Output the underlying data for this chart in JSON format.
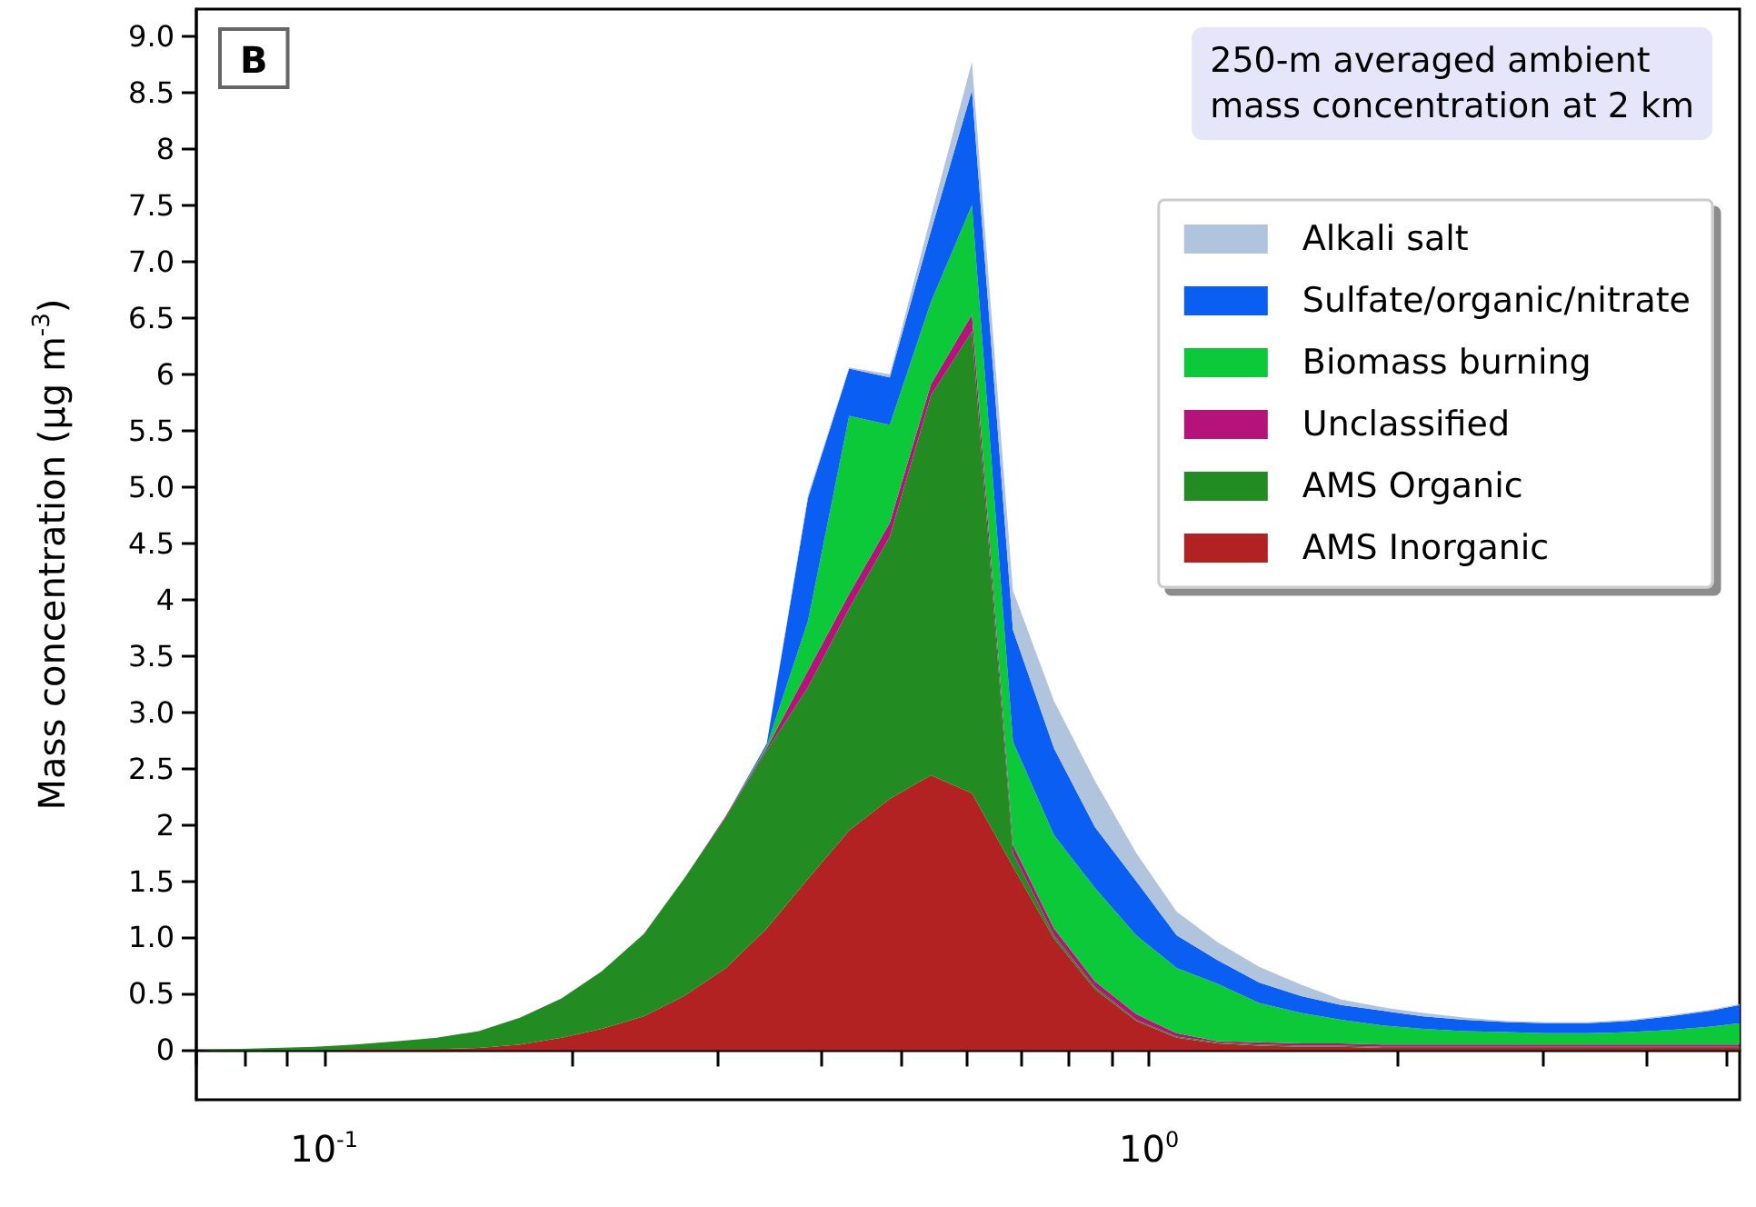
{
  "chart_data": {
    "type": "area",
    "stacked": true,
    "xlabel": null,
    "ylabel": "Mass concentration (µg m$^{-3}$)",
    "annotations": [
      "B",
      "250-m averaged ambient\nmass concentration at 2 km"
    ],
    "log": "x",
    "legend": "top right",
    "x": [
      0.07,
      0.0775,
      0.0869,
      0.0974,
      0.109,
      0.123,
      0.137,
      0.154,
      0.173,
      0.194,
      0.217,
      0.244,
      0.273,
      0.307,
      0.344,
      0.386,
      0.433,
      0.485,
      0.544,
      0.61,
      0.684,
      0.767,
      0.86,
      0.965,
      1.08,
      1.21,
      1.36,
      1.53,
      1.71,
      1.92,
      2.15,
      2.41,
      2.71,
      3.03,
      3.4,
      3.82,
      4.28,
      4.8,
      5.2
    ],
    "xlim": [
      0.07,
      5.2
    ],
    "xticks": [
      {
        "value": 0.07,
        "label": null
      },
      {
        "value": 0.08,
        "label": null
      },
      {
        "value": 0.09,
        "label": null
      },
      {
        "value": 0.1,
        "label": "10$^{-1}$"
      },
      {
        "value": 0.2,
        "label": null
      },
      {
        "value": 0.3,
        "label": null
      },
      {
        "value": 0.4,
        "label": null
      },
      {
        "value": 0.5,
        "label": null
      },
      {
        "value": 0.6,
        "label": null
      },
      {
        "value": 0.7,
        "label": null
      },
      {
        "value": 0.8,
        "label": null
      },
      {
        "value": 0.9,
        "label": null
      },
      {
        "value": 1,
        "label": "10$^{0}$"
      },
      {
        "value": 2,
        "label": null
      },
      {
        "value": 3,
        "label": null
      },
      {
        "value": 4,
        "label": null
      },
      {
        "value": 5,
        "label": null
      }
    ],
    "ylim": [
      -0.44,
      9.24
    ],
    "yticks": [
      0,
      0.5,
      {
        "value": 1,
        "label": "1.0"
      },
      1.5,
      2,
      2.5,
      {
        "value": 3,
        "label": "3.0"
      },
      3.5,
      4,
      4.5,
      {
        "value": 5,
        "label": "5.0"
      },
      5.5,
      6,
      6.5,
      {
        "value": 7,
        "label": "7.0"
      },
      7.5,
      8,
      8.5,
      {
        "value": 9,
        "label": "9.0"
      }
    ],
    "series": [
      {
        "name": "AMS Inorganic",
        "color": "#b22222",
        "values": [
          0,
          0,
          0,
          0,
          0.01,
          0.01,
          0.01,
          0.02,
          0.05,
          0.11,
          0.19,
          0.3,
          0.48,
          0.73,
          1.08,
          1.52,
          1.95,
          2.23,
          2.44,
          2.28,
          1.63,
          0.99,
          0.54,
          0.26,
          0.11,
          0.06,
          0.04,
          0.03,
          0.03,
          0.02,
          0.02,
          0.02,
          0.02,
          0.02,
          0.02,
          0.02,
          0.02,
          0.02,
          0.02
        ]
      },
      {
        "name": "AMS Organic",
        "color": "#228b22",
        "values": [
          0,
          0.01,
          0.02,
          0.03,
          0.04,
          0.07,
          0.1,
          0.15,
          0.24,
          0.35,
          0.51,
          0.73,
          1.04,
          1.34,
          1.58,
          1.7,
          1.97,
          2.33,
          3.37,
          4.1,
          0.12,
          0.03,
          0.02,
          0.01,
          0.01,
          0.01,
          0.01,
          0.01,
          0.01,
          0.01,
          0.01,
          0.01,
          0.01,
          0.01,
          0.01,
          0.01,
          0.01,
          0.01,
          0.01
        ]
      },
      {
        "name": "Unclassified",
        "color": "#b5137a",
        "values": [
          0,
          0,
          0,
          0,
          0,
          0,
          0,
          0,
          0,
          0,
          0,
          0,
          0,
          0.01,
          0.02,
          0.15,
          0.13,
          0.12,
          0.1,
          0.15,
          0.07,
          0.06,
          0.05,
          0.05,
          0.03,
          0.01,
          0.02,
          0.02,
          0.02,
          0.02,
          0.02,
          0.02,
          0.02,
          0.02,
          0.02,
          0.02,
          0.02,
          0.02,
          0.02
        ]
      },
      {
        "name": "Biomass burning",
        "color": "#0cc93a",
        "values": [
          0,
          0,
          0,
          0,
          0,
          0,
          0,
          0,
          0,
          0,
          0,
          0,
          0,
          0,
          0.02,
          0.44,
          1.58,
          0.87,
          0.73,
          0.97,
          0.92,
          0.83,
          0.83,
          0.7,
          0.58,
          0.51,
          0.35,
          0.27,
          0.21,
          0.17,
          0.14,
          0.12,
          0.11,
          0.1,
          0.1,
          0.11,
          0.13,
          0.16,
          0.19
        ]
      },
      {
        "name": "Sulfate/organic/nitrate",
        "color": "#0b5ef2",
        "values": [
          0,
          0,
          0,
          0,
          0,
          0,
          0,
          0,
          0,
          0,
          0,
          0,
          0,
          0,
          0.02,
          1.09,
          0.42,
          0.42,
          0.63,
          1.02,
          0.99,
          0.77,
          0.54,
          0.48,
          0.29,
          0.21,
          0.18,
          0.15,
          0.13,
          0.13,
          0.11,
          0.1,
          0.09,
          0.09,
          0.09,
          0.1,
          0.12,
          0.14,
          0.16
        ]
      },
      {
        "name": "Alkali salt",
        "color": "#b0c4de",
        "values": [
          0,
          0,
          0,
          0,
          0,
          0,
          0,
          0,
          0,
          0,
          0,
          0,
          0,
          0,
          0,
          0.03,
          0.01,
          0.03,
          0.13,
          0.25,
          0.35,
          0.42,
          0.41,
          0.25,
          0.21,
          0.16,
          0.14,
          0.1,
          0.05,
          0.03,
          0.03,
          0.02,
          0.01,
          0.01,
          0.01,
          0.01,
          0.01,
          0.01,
          0.01
        ]
      }
    ]
  }
}
